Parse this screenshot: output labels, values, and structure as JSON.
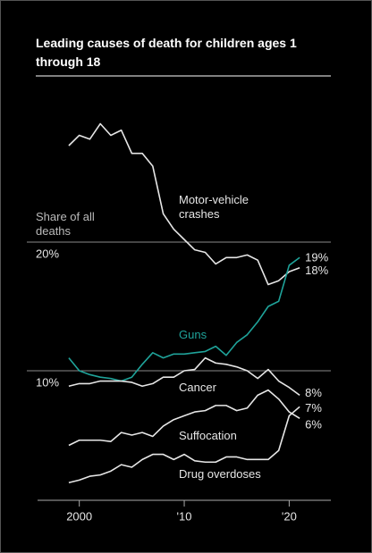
{
  "chart_data": {
    "type": "line",
    "title": "Leading causes of death for children ages 1 through 18",
    "annotation": "Share of all deaths",
    "x": [
      1999,
      2000,
      2001,
      2002,
      2003,
      2004,
      2005,
      2006,
      2007,
      2008,
      2009,
      2010,
      2011,
      2012,
      2013,
      2014,
      2015,
      2016,
      2017,
      2018,
      2019,
      2020,
      2021
    ],
    "xlim": [
      1995,
      2023
    ],
    "xticks": [
      {
        "value": 2000,
        "label": "2000"
      },
      {
        "value": 2010,
        "label": "'10"
      },
      {
        "value": 2020,
        "label": "'20"
      }
    ],
    "ylim": [
      0,
      30
    ],
    "yticks": [
      {
        "value": 10,
        "label": "10%"
      },
      {
        "value": 20,
        "label": "20%"
      }
    ],
    "grid": true,
    "series": [
      {
        "name": "Motor-vehicle crashes",
        "color": "#e6e6e6",
        "values": [
          27.5,
          28.3,
          28.0,
          29.2,
          28.3,
          28.7,
          26.9,
          26.9,
          25.9,
          22.2,
          21.0,
          20.2,
          19.4,
          19.2,
          18.3,
          18.8,
          18.8,
          19.0,
          18.6,
          16.7,
          17.0,
          17.7,
          18.0
        ],
        "value_labels": [
          null,
          null,
          null,
          null,
          null,
          null,
          null,
          null,
          null,
          null,
          null,
          null,
          null,
          null,
          null,
          null,
          null,
          null,
          null,
          null,
          null,
          null,
          "18%"
        ]
      },
      {
        "name": "Guns",
        "color": "#1fa39a",
        "values": [
          11.0,
          10.0,
          9.7,
          9.5,
          9.4,
          9.2,
          9.5,
          10.5,
          11.4,
          11.0,
          11.3,
          11.3,
          11.4,
          11.5,
          11.9,
          11.2,
          12.2,
          12.8,
          13.8,
          15.0,
          15.4,
          18.2,
          18.8
        ],
        "value_labels": [
          null,
          null,
          null,
          null,
          null,
          null,
          null,
          null,
          null,
          null,
          null,
          null,
          null,
          null,
          null,
          null,
          null,
          null,
          null,
          null,
          null,
          null,
          "19%"
        ]
      },
      {
        "name": "Cancer",
        "color": "#e6e6e6",
        "values": [
          8.8,
          9.0,
          9.0,
          9.2,
          9.2,
          9.2,
          9.1,
          8.8,
          9.0,
          9.5,
          9.5,
          10.0,
          10.1,
          11.0,
          10.6,
          10.5,
          10.3,
          10.0,
          9.4,
          10.1,
          9.2,
          8.7,
          8.1
        ],
        "value_labels": [
          null,
          null,
          null,
          null,
          null,
          null,
          null,
          null,
          null,
          null,
          null,
          null,
          null,
          null,
          null,
          null,
          null,
          null,
          null,
          null,
          null,
          null,
          "8%"
        ]
      },
      {
        "name": "Suffocation",
        "color": "#e6e6e6",
        "values": [
          4.2,
          4.6,
          4.6,
          4.6,
          4.5,
          5.2,
          5.0,
          5.2,
          4.9,
          5.7,
          6.2,
          6.5,
          6.8,
          6.9,
          7.3,
          7.3,
          6.9,
          7.1,
          8.1,
          8.5,
          7.8,
          6.8,
          6.3
        ],
        "value_labels": [
          null,
          null,
          null,
          null,
          null,
          null,
          null,
          null,
          null,
          null,
          null,
          null,
          null,
          null,
          null,
          null,
          null,
          null,
          null,
          null,
          null,
          null,
          "6%"
        ]
      },
      {
        "name": "Drug overdoses",
        "color": "#e6e6e6",
        "values": [
          1.3,
          1.5,
          1.8,
          1.9,
          2.2,
          2.7,
          2.5,
          3.1,
          3.5,
          3.5,
          3.1,
          3.5,
          3.0,
          2.9,
          2.9,
          3.3,
          3.3,
          3.1,
          3.1,
          3.1,
          3.8,
          6.5,
          7.2
        ],
        "value_labels": [
          null,
          null,
          null,
          null,
          null,
          null,
          null,
          null,
          null,
          null,
          null,
          null,
          null,
          null,
          null,
          null,
          null,
          null,
          null,
          null,
          null,
          null,
          "7%"
        ]
      }
    ]
  }
}
